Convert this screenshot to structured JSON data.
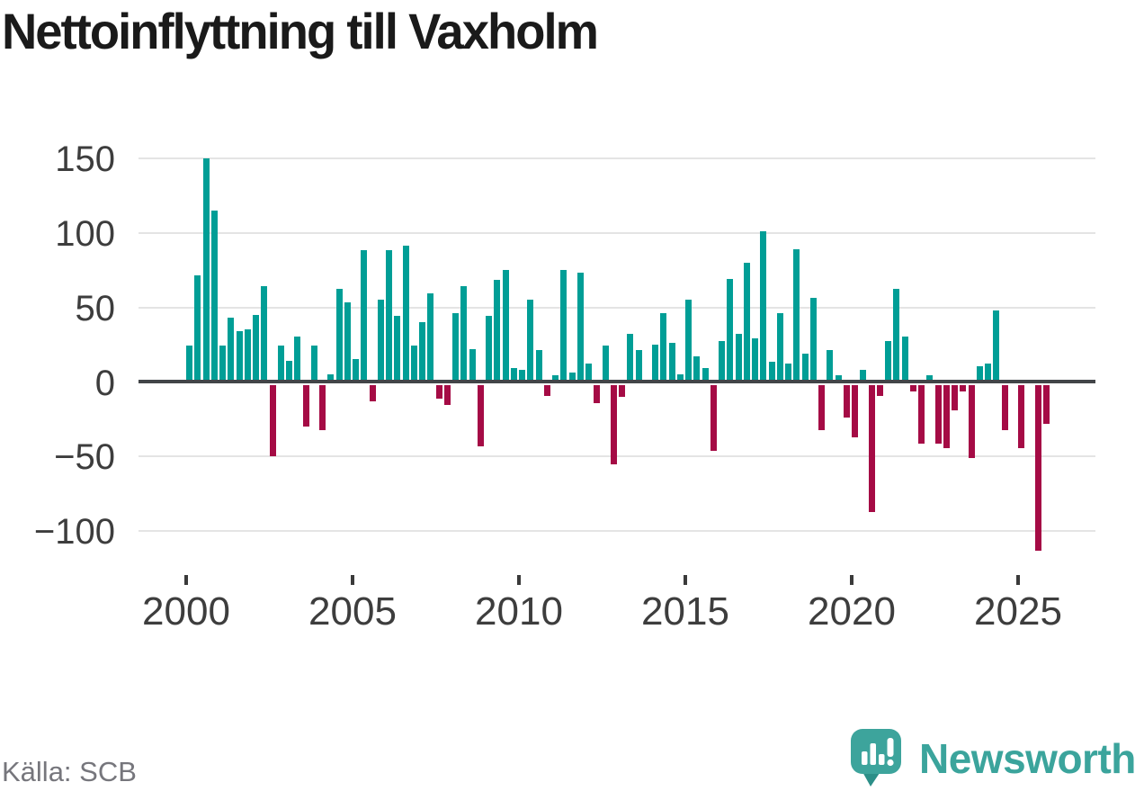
{
  "title": "Nettoinflyttning till Vaxholm",
  "source": "Källa: SCB",
  "branding": {
    "name": "Newsworthy"
  },
  "colors": {
    "positive_bar": "#009e96",
    "negative_bar": "#a50b45",
    "baseline": "#424548",
    "gridline": "#e4e4e4",
    "axis_text": "#3d3d3d",
    "title_text": "#1a1a1a",
    "source_text": "#76767c",
    "brand_teal": "#3ba49c",
    "brand_bubble": "#3da49c"
  },
  "chart_data": {
    "type": "bar",
    "title": "Nettoinflyttning till Vaxholm",
    "frequency": "quarterly",
    "x_start": "2000-Q1",
    "x_end": "2025-Q4",
    "grid": true,
    "ylim": [
      -120,
      160
    ],
    "y_ticks": [
      150,
      100,
      50,
      0,
      -50,
      -100
    ],
    "y_tick_labels": [
      "150",
      "100",
      "50",
      "0",
      "−50",
      "−100"
    ],
    "x_ticks": [
      2000,
      2005,
      2010,
      2015,
      2020,
      2025
    ],
    "x_tick_labels": [
      "2000",
      "2005",
      "2010",
      "2015",
      "2020",
      "2025"
    ],
    "values": [
      24,
      71,
      150,
      115,
      24,
      43,
      34,
      35,
      45,
      64,
      -48,
      24,
      14,
      30,
      -28,
      24,
      -30,
      5,
      62,
      53,
      15,
      88,
      -11,
      55,
      88,
      44,
      91,
      24,
      40,
      59,
      -9,
      -13,
      46,
      64,
      22,
      -41,
      44,
      68,
      75,
      9,
      8,
      55,
      21,
      -7,
      4,
      75,
      6,
      73,
      12,
      -12,
      24,
      -53,
      -8,
      32,
      21,
      0,
      25,
      46,
      26,
      5,
      55,
      17,
      9,
      -44,
      27,
      69,
      32,
      80,
      29,
      101,
      13,
      46,
      12,
      89,
      19,
      56,
      -30,
      21,
      4,
      -22,
      -35,
      8,
      -85,
      -7,
      27,
      62,
      30,
      -4,
      -39,
      4,
      -39,
      -42,
      -17,
      -4,
      -49,
      10,
      12,
      48,
      -30,
      0,
      -42,
      0,
      -111,
      -26
    ]
  }
}
